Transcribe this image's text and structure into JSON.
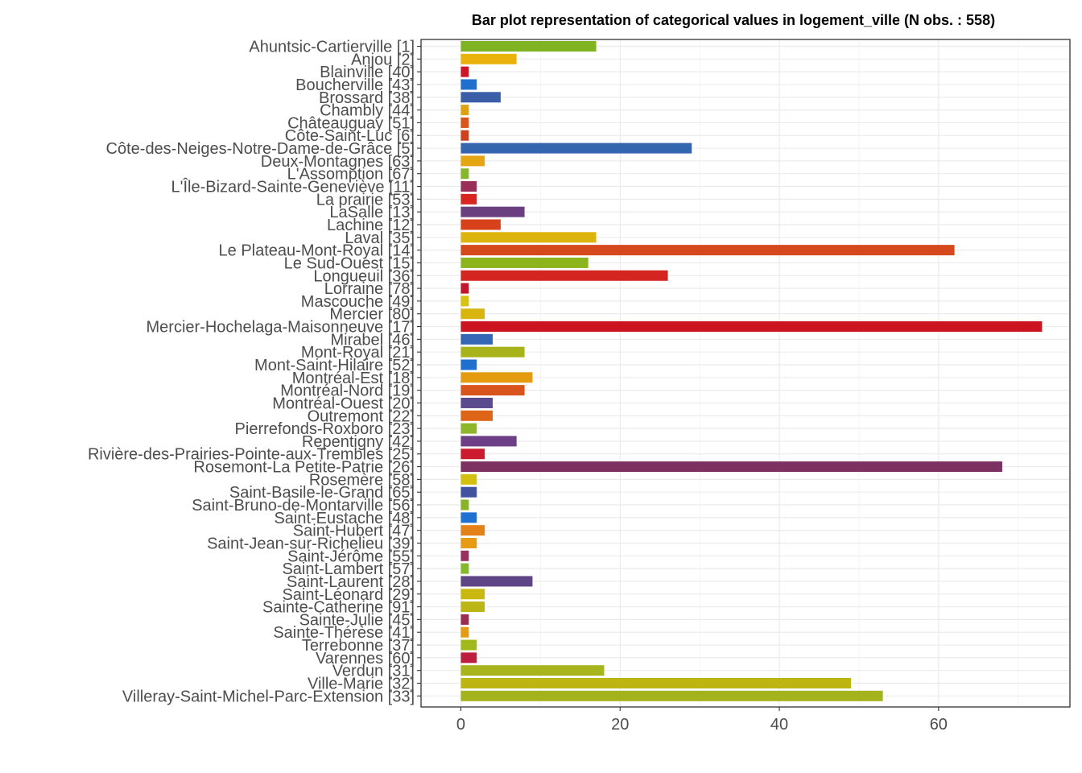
{
  "chart_data": {
    "type": "bar",
    "orientation": "horizontal",
    "title": "Bar plot representation of categorical values in logement_ville (N obs. : 558)",
    "xlabel": "",
    "ylabel": "",
    "xlim": [
      -5,
      76.5
    ],
    "x_ticks": [
      "0",
      "20",
      "40",
      "60"
    ],
    "grid": true,
    "legend": "none",
    "categories": [
      "Ahuntsic-Cartierville [1]",
      "Anjou [2]",
      "Blainville [40]",
      "Boucherville [43]",
      "Brossard [38]",
      "Chambly [44]",
      "Châteauguay [51]",
      "Côte-Saint-Luc [6]",
      "Côte-des-Neiges-Notre-Dame-de-Grâce [5]",
      "Deux-Montagnes [63]",
      "L'Assomption [67]",
      "L'Île-Bizard-Sainte-Geneviève [11]",
      "La prairie [53]",
      "LaSalle [13]",
      "Lachine [12]",
      "Laval [35]",
      "Le Plateau-Mont-Royal [14]",
      "Le Sud-Ouest [15]",
      "Longueuil [36]",
      "Lorraine [78]",
      "Mascouche [49]",
      "Mercier [80]",
      "Mercier-Hochelaga-Maisonneuve [17]",
      "Mirabel [46]",
      "Mont-Royal [21]",
      "Mont-Saint-Hilaire [52]",
      "Montréal-Est [18]",
      "Montréal-Nord [19]",
      "Montréal-Ouest [20]",
      "Outremont [22]",
      "Pierrefonds-Roxboro [23]",
      "Repentigny [42]",
      "Rivière-des-Prairies-Pointe-aux-Trembles [25]",
      "Rosemont-La Petite-Patrie [26]",
      "Rosemère [58]",
      "Saint-Basile-le-Grand [65]",
      "Saint-Bruno-de-Montarville [56]",
      "Saint-Eustache [48]",
      "Saint-Hubert [47]",
      "Saint-Jean-sur-Richelieu [39]",
      "Saint-Jérôme [55]",
      "Saint-Lambert [57]",
      "Saint-Laurent [28]",
      "Saint-Léonard [29]",
      "Sainte-Catherine [91]",
      "Sainte-Julie [45]",
      "Sainte-Thérèse [41]",
      "Terrebonne [37]",
      "Varennes [60]",
      "Verdun [31]",
      "Ville-Marie [32]",
      "Villeray-Saint-Michel-Parc-Extension [33]"
    ],
    "values": [
      17,
      7,
      1,
      2,
      5,
      1,
      1,
      1,
      29,
      3,
      1,
      2,
      2,
      8,
      5,
      17,
      62,
      16,
      26,
      1,
      1,
      3,
      73,
      4,
      8,
      2,
      9,
      8,
      4,
      4,
      2,
      7,
      3,
      68,
      2,
      2,
      1,
      2,
      3,
      2,
      1,
      1,
      9,
      3,
      3,
      1,
      1,
      2,
      2,
      18,
      49,
      53
    ],
    "colors": [
      "#7fb321",
      "#e9b30c",
      "#cf1428",
      "#1f6fcf",
      "#3a5ea8",
      "#e0a20b",
      "#d8561a",
      "#d0421e",
      "#3466b0",
      "#e6a512",
      "#86b72b",
      "#9a2e58",
      "#d9251f",
      "#6a3f80",
      "#d8421a",
      "#ddb30d",
      "#d6491c",
      "#8cb51d",
      "#d42520",
      "#c3162c",
      "#d7c30e",
      "#d9b50f",
      "#cc1420",
      "#3367b5",
      "#a8b31a",
      "#1f6fcf",
      "#e49b10",
      "#d9541c",
      "#5a4a8e",
      "#de6418",
      "#8eb62b",
      "#6d3f86",
      "#cc1b2e",
      "#7d3162",
      "#d4bf0f",
      "#4152a0",
      "#86b426",
      "#1f72d2",
      "#e4821a",
      "#e79a14",
      "#983060",
      "#86b82b",
      "#5e4585",
      "#c9b80f",
      "#bcb516",
      "#9c2c52",
      "#e69a12",
      "#a2b91c",
      "#bb1f3d",
      "#a8b41c",
      "#bdb511",
      "#a4b31c"
    ]
  }
}
